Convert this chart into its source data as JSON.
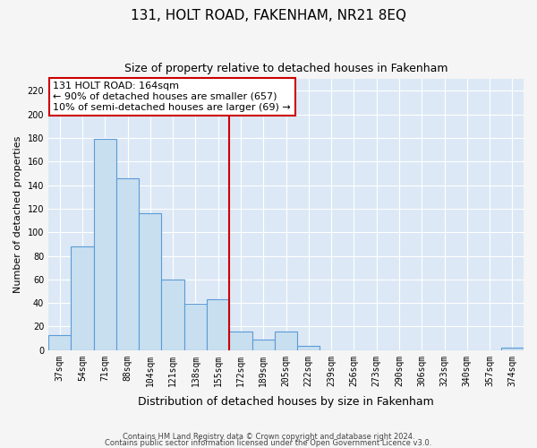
{
  "title": "131, HOLT ROAD, FAKENHAM, NR21 8EQ",
  "subtitle": "Size of property relative to detached houses in Fakenham",
  "xlabel": "Distribution of detached houses by size in Fakenham",
  "ylabel": "Number of detached properties",
  "bin_labels": [
    "37sqm",
    "54sqm",
    "71sqm",
    "88sqm",
    "104sqm",
    "121sqm",
    "138sqm",
    "155sqm",
    "172sqm",
    "189sqm",
    "205sqm",
    "222sqm",
    "239sqm",
    "256sqm",
    "273sqm",
    "290sqm",
    "306sqm",
    "323sqm",
    "340sqm",
    "357sqm",
    "374sqm"
  ],
  "bar_values": [
    13,
    88,
    179,
    146,
    116,
    60,
    39,
    43,
    16,
    9,
    16,
    4,
    0,
    0,
    0,
    0,
    0,
    0,
    0,
    0,
    2
  ],
  "bar_color": "#c8dff0",
  "bar_edge_color": "#5b9bd5",
  "vline_color": "#cc0000",
  "vline_index": 8,
  "ylim": [
    0,
    230
  ],
  "yticks": [
    0,
    20,
    40,
    60,
    80,
    100,
    120,
    140,
    160,
    180,
    200,
    220
  ],
  "annotation_title": "131 HOLT ROAD: 164sqm",
  "annotation_line1": "← 90% of detached houses are smaller (657)",
  "annotation_line2": "10% of semi-detached houses are larger (69) →",
  "annotation_box_color": "#ffffff",
  "annotation_box_edge": "#cc0000",
  "footer1": "Contains HM Land Registry data © Crown copyright and database right 2024.",
  "footer2": "Contains public sector information licensed under the Open Government Licence v3.0.",
  "background_color": "#f5f5f5",
  "plot_background_color": "#dce8f5",
  "grid_color": "#ffffff",
  "title_fontsize": 11,
  "subtitle_fontsize": 9,
  "ylabel_fontsize": 8,
  "xlabel_fontsize": 9,
  "tick_fontsize": 7,
  "annotation_fontsize": 8
}
